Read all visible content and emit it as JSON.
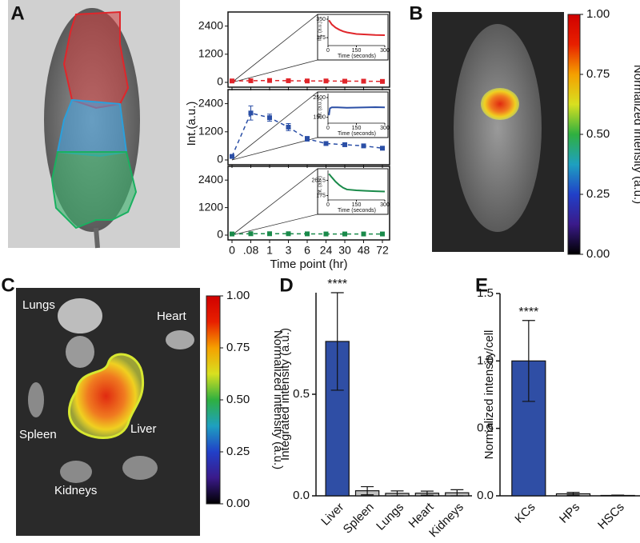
{
  "panel_labels": [
    "A",
    "B",
    "C",
    "D",
    "E"
  ],
  "organ_labels": [
    "Lungs",
    "Heart",
    "Spleen",
    "Liver",
    "Kidneys"
  ],
  "chart_data": [
    {
      "type": "line",
      "categories": [
        "0",
        ".08",
        "1",
        "3",
        "6",
        "24",
        "30",
        "48",
        "72"
      ],
      "xlabel": "Time point (hr)",
      "ylabel": "Int.(a.u.)",
      "subplots": [
        {
          "color": "#e0262b",
          "values": [
            60,
            70,
            80,
            70,
            60,
            60,
            50,
            50,
            40
          ],
          "ylim": [
            0,
            3000
          ],
          "yticks": [
            0,
            1200,
            2400
          ],
          "inset": {
            "x": [
              5,
              20,
              40,
              60,
              80,
              100,
              150,
              200,
              250,
              300
            ],
            "values": [
              340,
              300,
              270,
              250,
              235,
              225,
              210,
              205,
              200,
              198
            ],
            "xlim": [
              0,
              300
            ],
            "xticks": [
              0,
              150,
              300
            ],
            "ylim": [
              100,
              380
            ],
            "yticks": [
              175,
              350
            ],
            "xlabel": "Time (seconds)",
            "ylabel": "Int. (a.u.)"
          }
        },
        {
          "color": "#2b4fa6",
          "values": [
            150,
            2000,
            1800,
            1400,
            900,
            700,
            650,
            600,
            500
          ],
          "errors": [
            50,
            300,
            150,
            150,
            100,
            50,
            50,
            50,
            50
          ],
          "ylim": [
            0,
            3000
          ],
          "yticks": [
            0,
            1200,
            2400
          ],
          "inset": {
            "x": [
              5,
              10,
              20,
              50,
              100,
              150,
              200,
              250,
              300
            ],
            "values": [
              1600,
              1950,
              2000,
              2000,
              1980,
              1990,
              2000,
              2010,
              2000
            ],
            "xlim": [
              0,
              300
            ],
            "xticks": [
              0,
              150,
              300
            ],
            "ylim": [
              1200,
              2700
            ],
            "yticks": [
              1500,
              2500
            ],
            "xlabel": "Time (seconds)",
            "ylabel": "Int. (a.u.)"
          }
        },
        {
          "color": "#1a8a4a",
          "values": [
            50,
            60,
            60,
            60,
            55,
            50,
            50,
            50,
            50
          ],
          "ylim": [
            0,
            3000
          ],
          "yticks": [
            0,
            1200,
            2400
          ],
          "inset": {
            "x": [
              5,
              20,
              40,
              60,
              80,
              100,
              150,
              200,
              250,
              300
            ],
            "values": [
              300,
              280,
              255,
              235,
              220,
              210,
              205,
              202,
              200,
              198
            ],
            "xlim": [
              0,
              300
            ],
            "xticks": [
              0,
              150,
              300
            ],
            "ylim": [
              150,
              320
            ],
            "yticks": [
              175,
              262.5
            ],
            "xlabel": "Time (seconds)",
            "ylabel": "Int. (a.u.)"
          }
        }
      ]
    },
    {
      "type": "colorbar",
      "label": "Normalized intensity (a.u.)",
      "ylim": [
        0,
        1
      ],
      "colors": [
        "#000000",
        "#3a1a8a",
        "#2140c8",
        "#1ea0c0",
        "#2fb040",
        "#d8e020",
        "#f5a000",
        "#e82000",
        "#d00000"
      ],
      "yticks": [
        {
          "value": 0,
          "label": "0.00"
        },
        {
          "value": 0.25,
          "label": "0.25"
        },
        {
          "value": 0.5,
          "label": "0.50"
        },
        {
          "value": 0.75,
          "label": "0.75"
        },
        {
          "value": 1,
          "label": "1.00"
        }
      ]
    },
    {
      "type": "colorbar",
      "label": "Normalized intensity (a.u.)",
      "ylim": [
        0,
        1
      ],
      "colors": [
        "#000000",
        "#3a1a8a",
        "#2140c8",
        "#1ea0c0",
        "#2fb040",
        "#d8e020",
        "#f5a000",
        "#e82000",
        "#d00000"
      ],
      "yticks": [
        {
          "value": 0,
          "label": "0.00"
        },
        {
          "value": 0.25,
          "label": "0.25"
        },
        {
          "value": 0.5,
          "label": "0.50"
        },
        {
          "value": 0.75,
          "label": "0.75"
        },
        {
          "value": 1,
          "label": "1.00"
        }
      ]
    },
    {
      "type": "bar",
      "ylabel": "Integrated intensity (a.u.)",
      "annotation": "****",
      "categories": [
        "Liver",
        "Spleen",
        "Lungs",
        "Heart",
        "Kidneys"
      ],
      "values": [
        0.76,
        0.025,
        0.012,
        0.013,
        0.015
      ],
      "errors": [
        0.24,
        0.02,
        0.012,
        0.01,
        0.015
      ],
      "colors": [
        "#2f4ea5",
        "#c0c0c0",
        "#c0c0c0",
        "#c0c0c0",
        "#c0c0c0"
      ],
      "ylim": [
        0,
        1
      ],
      "yticks": [
        {
          "value": 0,
          "label": "0.0"
        },
        0.5
      ]
    },
    {
      "type": "bar",
      "ylabel": "Normalized intensity/cell",
      "annotation": "****",
      "categories": [
        "KCs",
        "HPs",
        "HSCs"
      ],
      "values": [
        1.0,
        0.015,
        0.003
      ],
      "errors": [
        0.3,
        0.01,
        0.002
      ],
      "colors": [
        "#2f4ea5",
        "#c0c0c0",
        "#c0c0c0"
      ],
      "ylim": [
        0,
        1.5
      ],
      "yticks": [
        {
          "value": 0,
          "label": "0.0"
        },
        0.5,
        {
          "value": 1,
          "label": "1.0"
        },
        1.5
      ]
    }
  ]
}
